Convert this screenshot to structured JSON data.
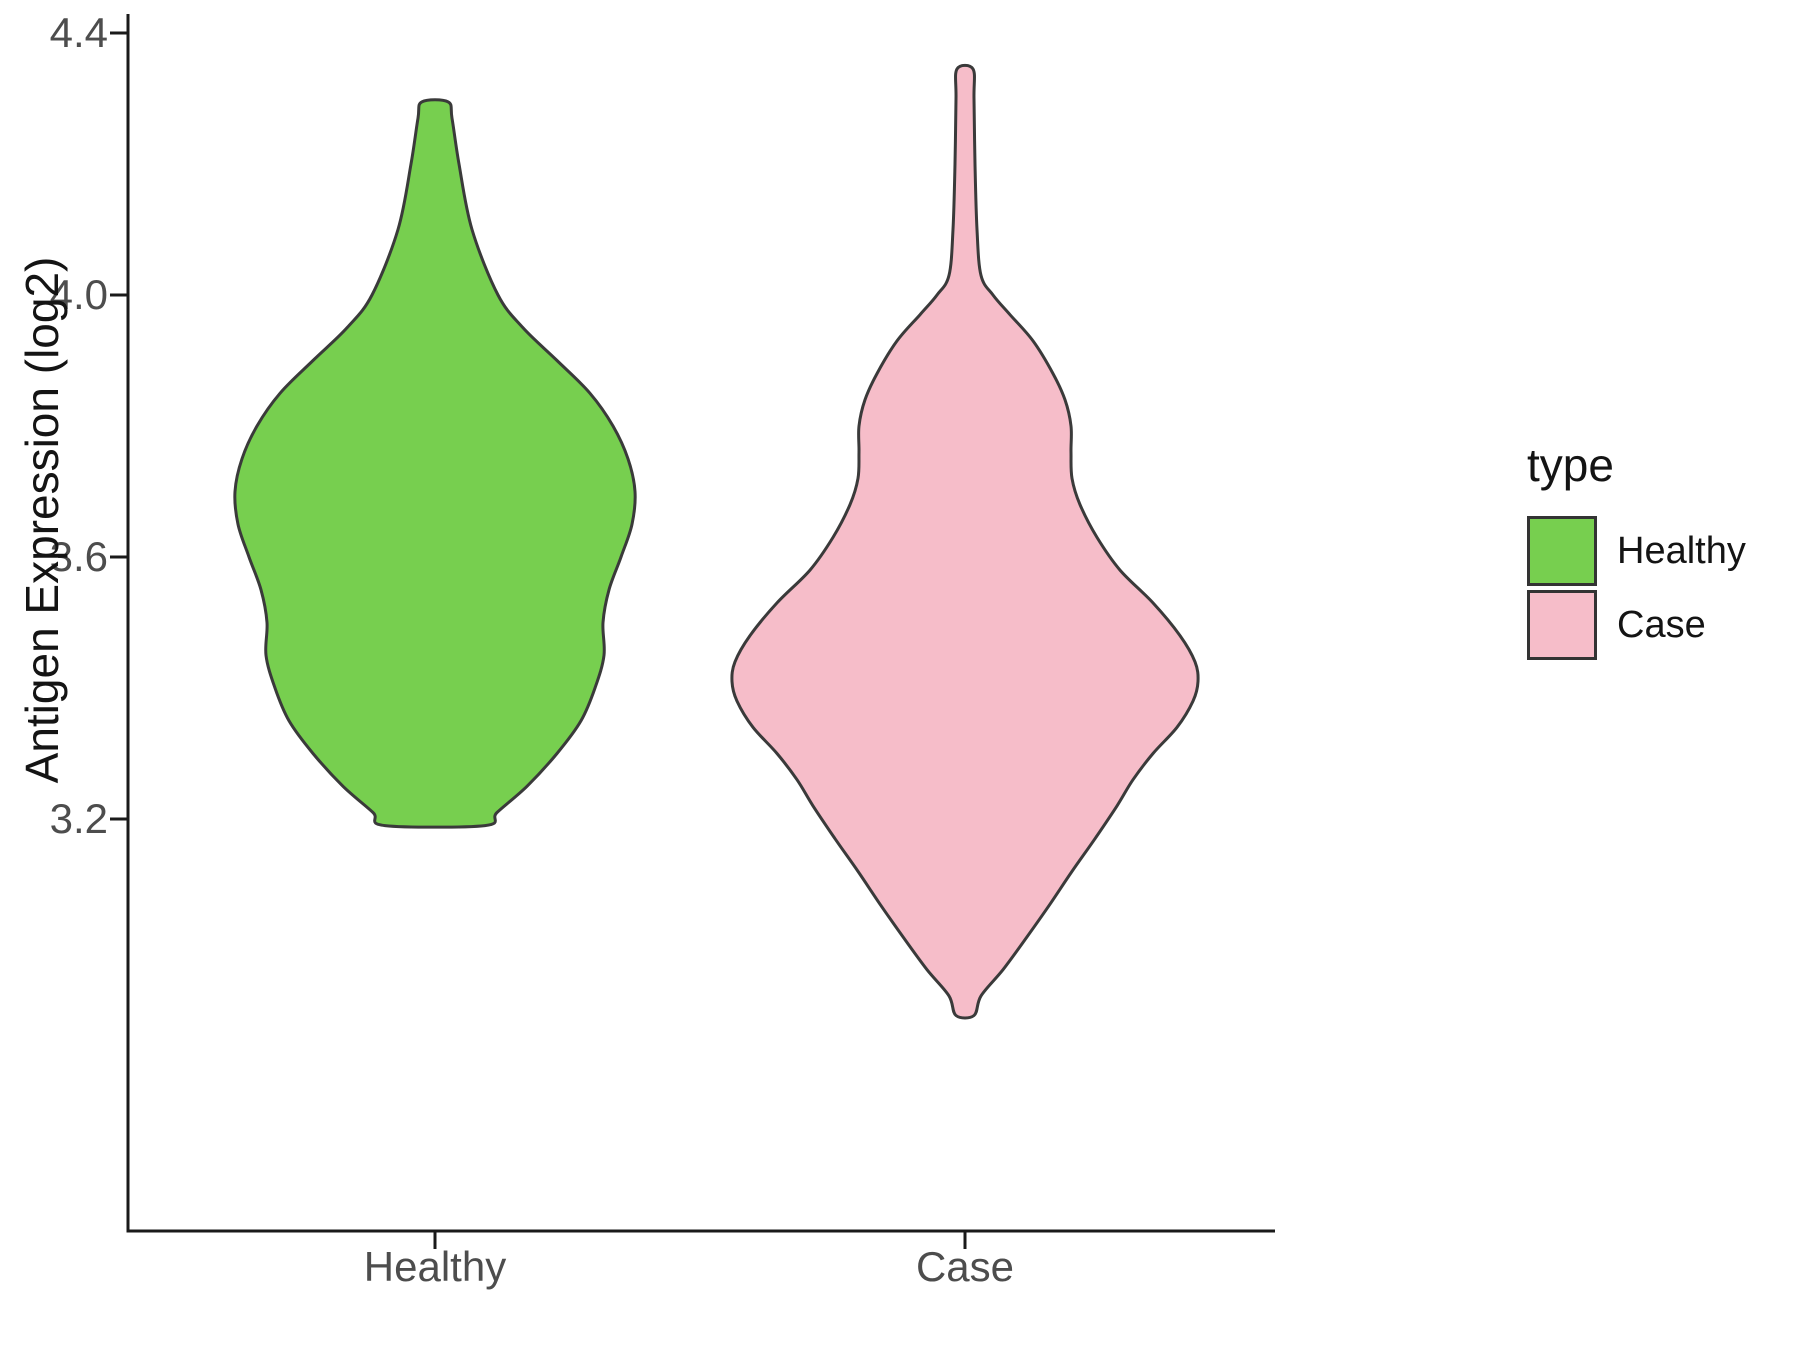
{
  "chart_data": {
    "type": "violin",
    "title": "",
    "xlabel": "",
    "ylabel": "Antigen Expression (log2)",
    "categories": [
      "Healthy",
      "Case"
    ],
    "yticks": [
      "4.4",
      "4.0",
      "3.6",
      "3.2"
    ],
    "ytick_values": [
      4.4,
      4.0,
      3.6,
      3.2
    ],
    "ylim": [
      2.57,
      4.43
    ],
    "grid": "off",
    "legend_position": "right",
    "legend": {
      "title": "type",
      "entries": [
        {
          "label": "Healthy",
          "color": "#77CF4F"
        },
        {
          "label": "Case",
          "color": "#F6BDC9"
        }
      ]
    },
    "series": [
      {
        "name": "Healthy",
        "fill": "#77CF4F",
        "stroke": "#3a3a3a",
        "value_range": [
          3.19,
          4.3
        ],
        "widest_at": 3.7,
        "profile": [
          [
            4.295,
            13
          ],
          [
            4.27,
            17
          ],
          [
            4.2,
            24
          ],
          [
            4.1,
            37
          ],
          [
            4.0,
            63
          ],
          [
            3.95,
            88
          ],
          [
            3.9,
            122
          ],
          [
            3.85,
            155
          ],
          [
            3.8,
            178
          ],
          [
            3.75,
            193
          ],
          [
            3.7,
            200
          ],
          [
            3.65,
            197
          ],
          [
            3.6,
            186
          ],
          [
            3.55,
            174
          ],
          [
            3.5,
            168
          ],
          [
            3.45,
            169
          ],
          [
            3.4,
            160
          ],
          [
            3.35,
            146
          ],
          [
            3.3,
            122
          ],
          [
            3.25,
            92
          ],
          [
            3.21,
            62
          ],
          [
            3.19,
            50
          ]
        ]
      },
      {
        "name": "Case",
        "fill": "#F6BDC9",
        "stroke": "#3a3a3a",
        "value_range": [
          2.9,
          4.345
        ],
        "widest_at": 3.42,
        "profile": [
          [
            4.345,
            8
          ],
          [
            4.3,
            9
          ],
          [
            4.2,
            10
          ],
          [
            4.1,
            12
          ],
          [
            4.03,
            16
          ],
          [
            4.0,
            28
          ],
          [
            3.97,
            45
          ],
          [
            3.93,
            68
          ],
          [
            3.88,
            88
          ],
          [
            3.84,
            100
          ],
          [
            3.8,
            106
          ],
          [
            3.76,
            106
          ],
          [
            3.72,
            107
          ],
          [
            3.68,
            115
          ],
          [
            3.63,
            132
          ],
          [
            3.58,
            155
          ],
          [
            3.53,
            188
          ],
          [
            3.48,
            215
          ],
          [
            3.44,
            230
          ],
          [
            3.41,
            233
          ],
          [
            3.38,
            228
          ],
          [
            3.34,
            212
          ],
          [
            3.3,
            188
          ],
          [
            3.26,
            168
          ],
          [
            3.22,
            152
          ],
          [
            3.17,
            130
          ],
          [
            3.12,
            107
          ],
          [
            3.07,
            85
          ],
          [
            3.02,
            62
          ],
          [
            2.97,
            38
          ],
          [
            2.93,
            16
          ],
          [
            2.9,
            9
          ]
        ]
      }
    ],
    "axis_color": "#1a1a1a",
    "tick_label_color": "#4d4d4d"
  }
}
